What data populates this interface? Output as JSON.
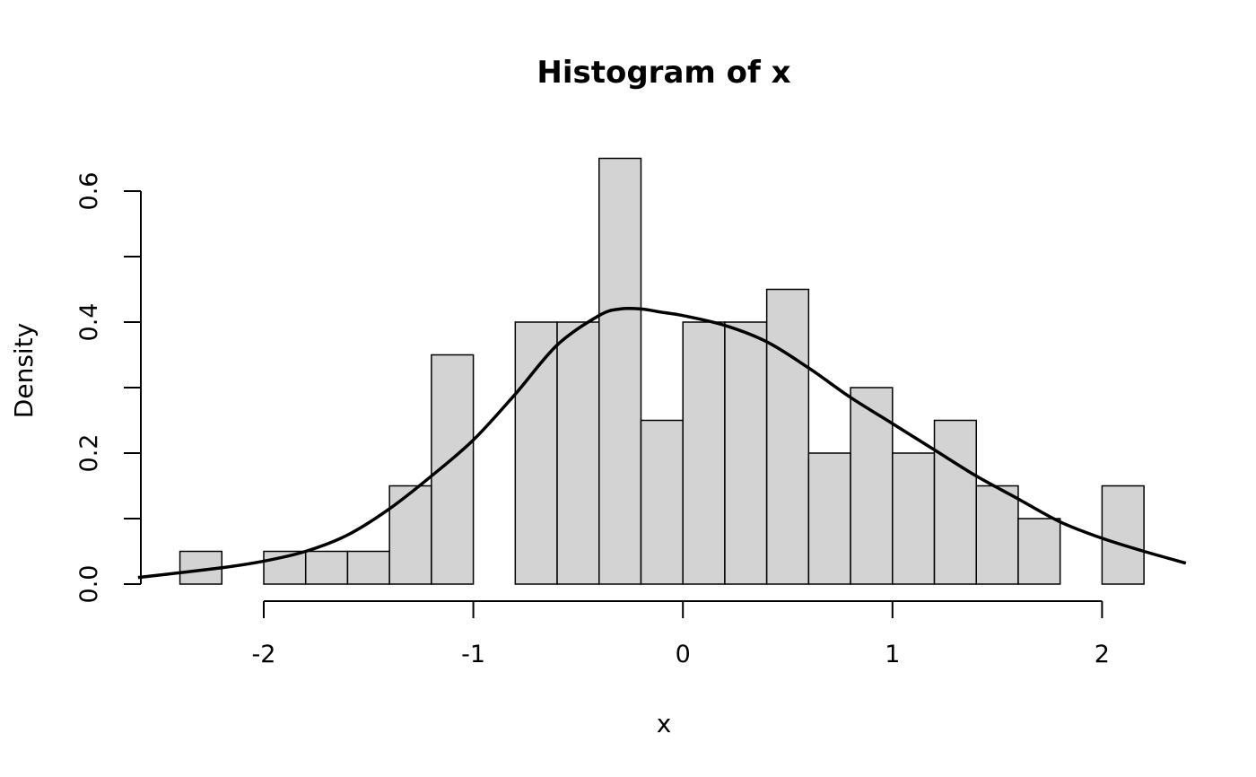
{
  "chart_data": {
    "type": "bar",
    "title": "Histogram of x",
    "xlabel": "x",
    "ylabel": "Density",
    "xlim": [
      -2.6,
      2.4
    ],
    "ylim": [
      0,
      0.6
    ],
    "x_ticks": [
      -2,
      -1,
      0,
      1,
      2
    ],
    "x_tick_labels": [
      "-2",
      "-1",
      "0",
      "1",
      "2"
    ],
    "y_ticks": [
      0.0,
      0.1,
      0.2,
      0.3,
      0.4,
      0.5,
      0.6
    ],
    "y_tick_labels": [
      "0.0",
      "0.2",
      "0.4",
      "0.6"
    ],
    "y_labeled_ticks": [
      0.0,
      0.2,
      0.4,
      0.6
    ],
    "bin_width": 0.2,
    "bins": [
      {
        "x0": -2.4,
        "x1": -2.2,
        "density": 0.05
      },
      {
        "x0": -2.2,
        "x1": -2.0,
        "density": 0.0
      },
      {
        "x0": -2.0,
        "x1": -1.8,
        "density": 0.05
      },
      {
        "x0": -1.8,
        "x1": -1.6,
        "density": 0.05
      },
      {
        "x0": -1.6,
        "x1": -1.4,
        "density": 0.05
      },
      {
        "x0": -1.4,
        "x1": -1.2,
        "density": 0.15
      },
      {
        "x0": -1.2,
        "x1": -1.0,
        "density": 0.35
      },
      {
        "x0": -1.0,
        "x1": -0.8,
        "density": 0.0
      },
      {
        "x0": -0.8,
        "x1": -0.6,
        "density": 0.4
      },
      {
        "x0": -0.6,
        "x1": -0.4,
        "density": 0.4
      },
      {
        "x0": -0.4,
        "x1": -0.2,
        "density": 0.65
      },
      {
        "x0": -0.2,
        "x1": 0.0,
        "density": 0.25
      },
      {
        "x0": 0.0,
        "x1": 0.2,
        "density": 0.4
      },
      {
        "x0": 0.2,
        "x1": 0.4,
        "density": 0.4
      },
      {
        "x0": 0.4,
        "x1": 0.6,
        "density": 0.45
      },
      {
        "x0": 0.6,
        "x1": 0.8,
        "density": 0.2
      },
      {
        "x0": 0.8,
        "x1": 1.0,
        "density": 0.3
      },
      {
        "x0": 1.0,
        "x1": 1.2,
        "density": 0.2
      },
      {
        "x0": 1.2,
        "x1": 1.4,
        "density": 0.25
      },
      {
        "x0": 1.4,
        "x1": 1.6,
        "density": 0.15
      },
      {
        "x0": 1.6,
        "x1": 1.8,
        "density": 0.1
      },
      {
        "x0": 1.8,
        "x1": 2.0,
        "density": 0.0
      },
      {
        "x0": 2.0,
        "x1": 2.2,
        "density": 0.15
      }
    ],
    "density_curve": {
      "x": [
        -2.6,
        -2.2,
        -2.0,
        -1.8,
        -1.6,
        -1.4,
        -1.2,
        -1.0,
        -0.8,
        -0.6,
        -0.4,
        -0.3,
        -0.2,
        -0.1,
        0.0,
        0.2,
        0.4,
        0.6,
        0.8,
        1.0,
        1.2,
        1.4,
        1.6,
        1.8,
        2.0,
        2.2,
        2.4
      ],
      "y": [
        0.01,
        0.025,
        0.035,
        0.05,
        0.075,
        0.115,
        0.165,
        0.22,
        0.29,
        0.365,
        0.41,
        0.42,
        0.42,
        0.415,
        0.41,
        0.395,
        0.37,
        0.33,
        0.285,
        0.245,
        0.205,
        0.165,
        0.13,
        0.095,
        0.07,
        0.05,
        0.032
      ]
    },
    "grid": false,
    "colors": {
      "bar_fill": "#d3d3d3",
      "bar_stroke": "#000000",
      "curve": "#000000"
    }
  }
}
